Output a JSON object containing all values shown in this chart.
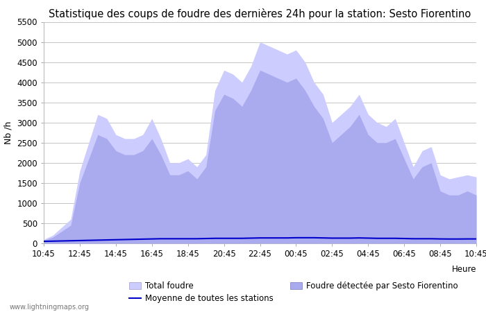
{
  "title": "Statistique des coups de foudre des dernières 24h pour la station: Sesto Fiorentino",
  "ylabel": "Nb /h",
  "xlabel": "Heure",
  "watermark": "www.lightningmaps.org",
  "ylim": [
    0,
    5500
  ],
  "yticks": [
    0,
    500,
    1000,
    1500,
    2000,
    2500,
    3000,
    3500,
    4000,
    4500,
    5000,
    5500
  ],
  "xtick_labels": [
    "10:45",
    "12:45",
    "14:45",
    "16:45",
    "18:45",
    "20:45",
    "22:45",
    "00:45",
    "02:45",
    "04:45",
    "06:45",
    "08:45",
    "10:45"
  ],
  "legend_labels": [
    "Total foudre",
    "Moyenne de toutes les stations",
    "Foudre détectée par Sesto Fiorentino"
  ],
  "total_foudre_color": "#ccccff",
  "local_foudre_color": "#aaaaee",
  "moyenne_color": "#0000cc",
  "background_color": "#ffffff",
  "grid_color": "#bbbbbb",
  "title_fontsize": 10.5,
  "tick_fontsize": 8.5,
  "label_fontsize": 9,
  "x_values": [
    0,
    1,
    2,
    3,
    4,
    5,
    6,
    7,
    8,
    9,
    10,
    11,
    12,
    13,
    14,
    15,
    16,
    17,
    18,
    19,
    20,
    21,
    22,
    23,
    24,
    25,
    26,
    27,
    28,
    29,
    30,
    31,
    32,
    33,
    34,
    35,
    36,
    37,
    38,
    39,
    40,
    41,
    42,
    43,
    44,
    45,
    46,
    47,
    48
  ],
  "total_foudre_y": [
    100,
    200,
    400,
    600,
    1800,
    2500,
    3200,
    3100,
    2700,
    2600,
    2600,
    2700,
    3100,
    2600,
    2000,
    2000,
    2100,
    1900,
    2200,
    3800,
    4300,
    4200,
    4000,
    4400,
    5000,
    4900,
    4800,
    4700,
    4800,
    4500,
    4000,
    3700,
    3000,
    3200,
    3400,
    3700,
    3200,
    3000,
    2900,
    3100,
    2500,
    1900,
    2300,
    2400,
    1700,
    1600,
    1650,
    1700,
    1650
  ],
  "local_foudre_y": [
    80,
    150,
    300,
    450,
    1500,
    2100,
    2700,
    2600,
    2300,
    2200,
    2200,
    2300,
    2600,
    2200,
    1700,
    1700,
    1800,
    1600,
    1900,
    3300,
    3700,
    3600,
    3400,
    3800,
    4300,
    4200,
    4100,
    4000,
    4100,
    3800,
    3400,
    3100,
    2500,
    2700,
    2900,
    3200,
    2700,
    2500,
    2500,
    2600,
    2100,
    1600,
    1900,
    2000,
    1300,
    1200,
    1200,
    1300,
    1200
  ],
  "moyenne_y": [
    50,
    55,
    60,
    65,
    70,
    75,
    80,
    85,
    90,
    95,
    100,
    105,
    110,
    115,
    115,
    115,
    115,
    115,
    120,
    125,
    125,
    125,
    125,
    130,
    135,
    135,
    135,
    135,
    140,
    140,
    140,
    135,
    130,
    130,
    130,
    135,
    130,
    125,
    125,
    125,
    120,
    115,
    115,
    115,
    110,
    108,
    108,
    110,
    110
  ]
}
